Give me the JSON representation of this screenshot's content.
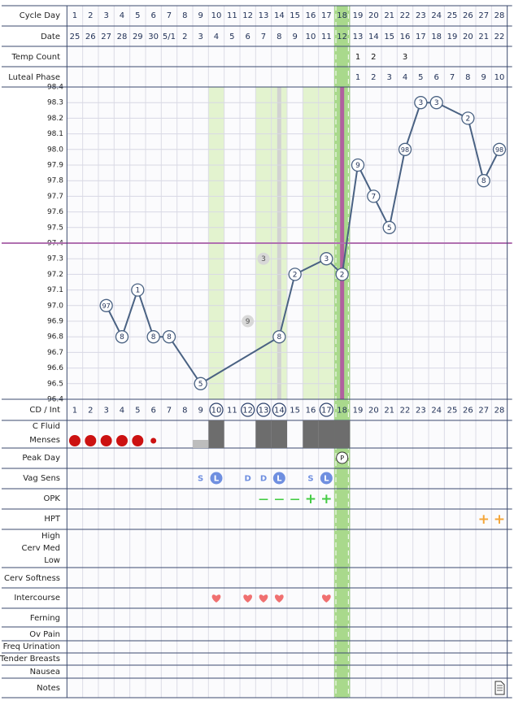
{
  "cycle_day": {
    "label": "Cycle Day",
    "values": [
      1,
      2,
      3,
      4,
      5,
      6,
      7,
      8,
      9,
      10,
      11,
      12,
      13,
      14,
      15,
      16,
      17,
      18,
      19,
      20,
      21,
      22,
      23,
      24,
      25,
      26,
      27,
      28
    ]
  },
  "date": {
    "label": "Date",
    "values": [
      25,
      26,
      27,
      28,
      29,
      30,
      "5/1",
      2,
      3,
      4,
      5,
      6,
      7,
      8,
      9,
      10,
      11,
      12,
      13,
      14,
      15,
      16,
      17,
      18,
      19,
      20,
      21,
      22
    ]
  },
  "temp_count": {
    "label": "Temp Count",
    "values": [
      null,
      null,
      null,
      null,
      null,
      null,
      null,
      null,
      null,
      null,
      null,
      null,
      null,
      null,
      null,
      null,
      null,
      null,
      1,
      2,
      null,
      3,
      null,
      null,
      null,
      null,
      null,
      null
    ]
  },
  "luteal_phase": {
    "label": "Luteal Phase",
    "values": [
      null,
      null,
      null,
      null,
      null,
      null,
      null,
      null,
      null,
      null,
      null,
      null,
      null,
      null,
      null,
      null,
      null,
      null,
      1,
      2,
      3,
      4,
      5,
      6,
      7,
      8,
      9,
      10
    ]
  },
  "chart_data": {
    "type": "line",
    "x": [
      3,
      4,
      5,
      6,
      7,
      9,
      14,
      15,
      17,
      18,
      19,
      20,
      21,
      22,
      23,
      24,
      26,
      27,
      28
    ],
    "xlim": [
      0.5,
      28.5
    ],
    "series": [
      {
        "values": [
          97.0,
          96.8,
          97.1,
          96.8,
          96.8,
          96.5,
          96.8,
          97.2,
          97.3,
          97.2,
          97.9,
          97.7,
          97.5,
          98.0,
          98.3,
          98.3,
          98.2,
          97.8,
          98.0
        ],
        "value_labels": [
          "97",
          "8",
          "1",
          "8",
          "8",
          "5",
          "8",
          "2",
          "3",
          "2",
          "9",
          "7",
          "5",
          "98",
          "3",
          "3",
          "2",
          "8",
          "98"
        ],
        "color": "#4a6283"
      }
    ],
    "discarded": {
      "x": [
        12,
        13
      ],
      "values": [
        96.9,
        97.3
      ],
      "value_labels": [
        "9",
        "3"
      ],
      "color": "#d8d8d8"
    },
    "coverline": 97.4,
    "coverline_color": "#b070b0",
    "ovulation_day": 18,
    "highlight_days": [
      10,
      13,
      14,
      16,
      17
    ],
    "gray_day": 14,
    "ylim": [
      96.4,
      98.4
    ],
    "yticks": [
      96.4,
      96.5,
      96.6,
      96.7,
      96.8,
      96.9,
      {
        "value": 97,
        "label": "97.0"
      },
      97.1,
      97.2,
      97.3,
      97.4,
      97.5,
      97.6,
      97.7,
      97.8,
      97.9,
      {
        "value": 98,
        "label": "98.0"
      },
      98.1,
      98.2,
      98.3,
      98.4
    ],
    "grid": true
  },
  "cd_int": {
    "label": "CD / Int",
    "values": [
      1,
      2,
      3,
      4,
      5,
      6,
      7,
      8,
      9,
      10,
      11,
      12,
      13,
      14,
      15,
      16,
      17,
      18,
      19,
      20,
      21,
      22,
      23,
      24,
      25,
      26,
      27,
      28
    ],
    "circled": [
      10,
      12,
      13,
      14,
      17
    ]
  },
  "c_fluid": {
    "label": "C Fluid",
    "days": [
      10,
      13,
      14,
      16,
      17,
      18
    ],
    "spotting_days": [
      9
    ]
  },
  "menses": {
    "label": "Menses",
    "heavy_days": [
      1,
      2,
      3,
      4,
      5
    ],
    "light_days": [
      6
    ]
  },
  "peak_day": {
    "label": "Peak Day",
    "values": [
      null,
      null,
      null,
      null,
      null,
      null,
      null,
      null,
      null,
      null,
      null,
      null,
      null,
      null,
      null,
      null,
      null,
      "P",
      null,
      null,
      null,
      null,
      null,
      null,
      null,
      null,
      null,
      null
    ]
  },
  "vag_sens": {
    "label": "Vag Sens",
    "values": [
      null,
      null,
      null,
      null,
      null,
      null,
      null,
      null,
      "S",
      "L",
      null,
      "D",
      "D",
      "L",
      null,
      "S",
      "L",
      null,
      null,
      null,
      null,
      null,
      null,
      null,
      null,
      null,
      null,
      null
    ]
  },
  "opk": {
    "label": "OPK",
    "values": [
      null,
      null,
      null,
      null,
      null,
      null,
      null,
      null,
      null,
      null,
      null,
      null,
      "—",
      "—",
      "—",
      "+",
      "+",
      null,
      null,
      null,
      null,
      null,
      null,
      null,
      null,
      null,
      null,
      null
    ]
  },
  "hpt": {
    "label": "HPT",
    "values": [
      null,
      null,
      null,
      null,
      null,
      null,
      null,
      null,
      null,
      null,
      null,
      null,
      null,
      null,
      null,
      null,
      null,
      null,
      null,
      null,
      null,
      null,
      null,
      null,
      null,
      null,
      "+",
      "+"
    ]
  },
  "cervix": {
    "labels": [
      "High",
      "Cerv Med",
      "Low"
    ]
  },
  "cerv_softness": {
    "label": "Cerv Softness"
  },
  "intercourse": {
    "label": "Intercourse",
    "days": [
      10,
      12,
      13,
      14,
      17
    ]
  },
  "ferning": {
    "label": "Ferning"
  },
  "ov_pain": {
    "label": "Ov Pain"
  },
  "freq_urination": {
    "label": "Freq Urination"
  },
  "tender_breasts": {
    "label": "Tender Breasts"
  },
  "nausea": {
    "label": "Nausea"
  },
  "notes": {
    "label": "Notes",
    "days": [
      28
    ]
  }
}
